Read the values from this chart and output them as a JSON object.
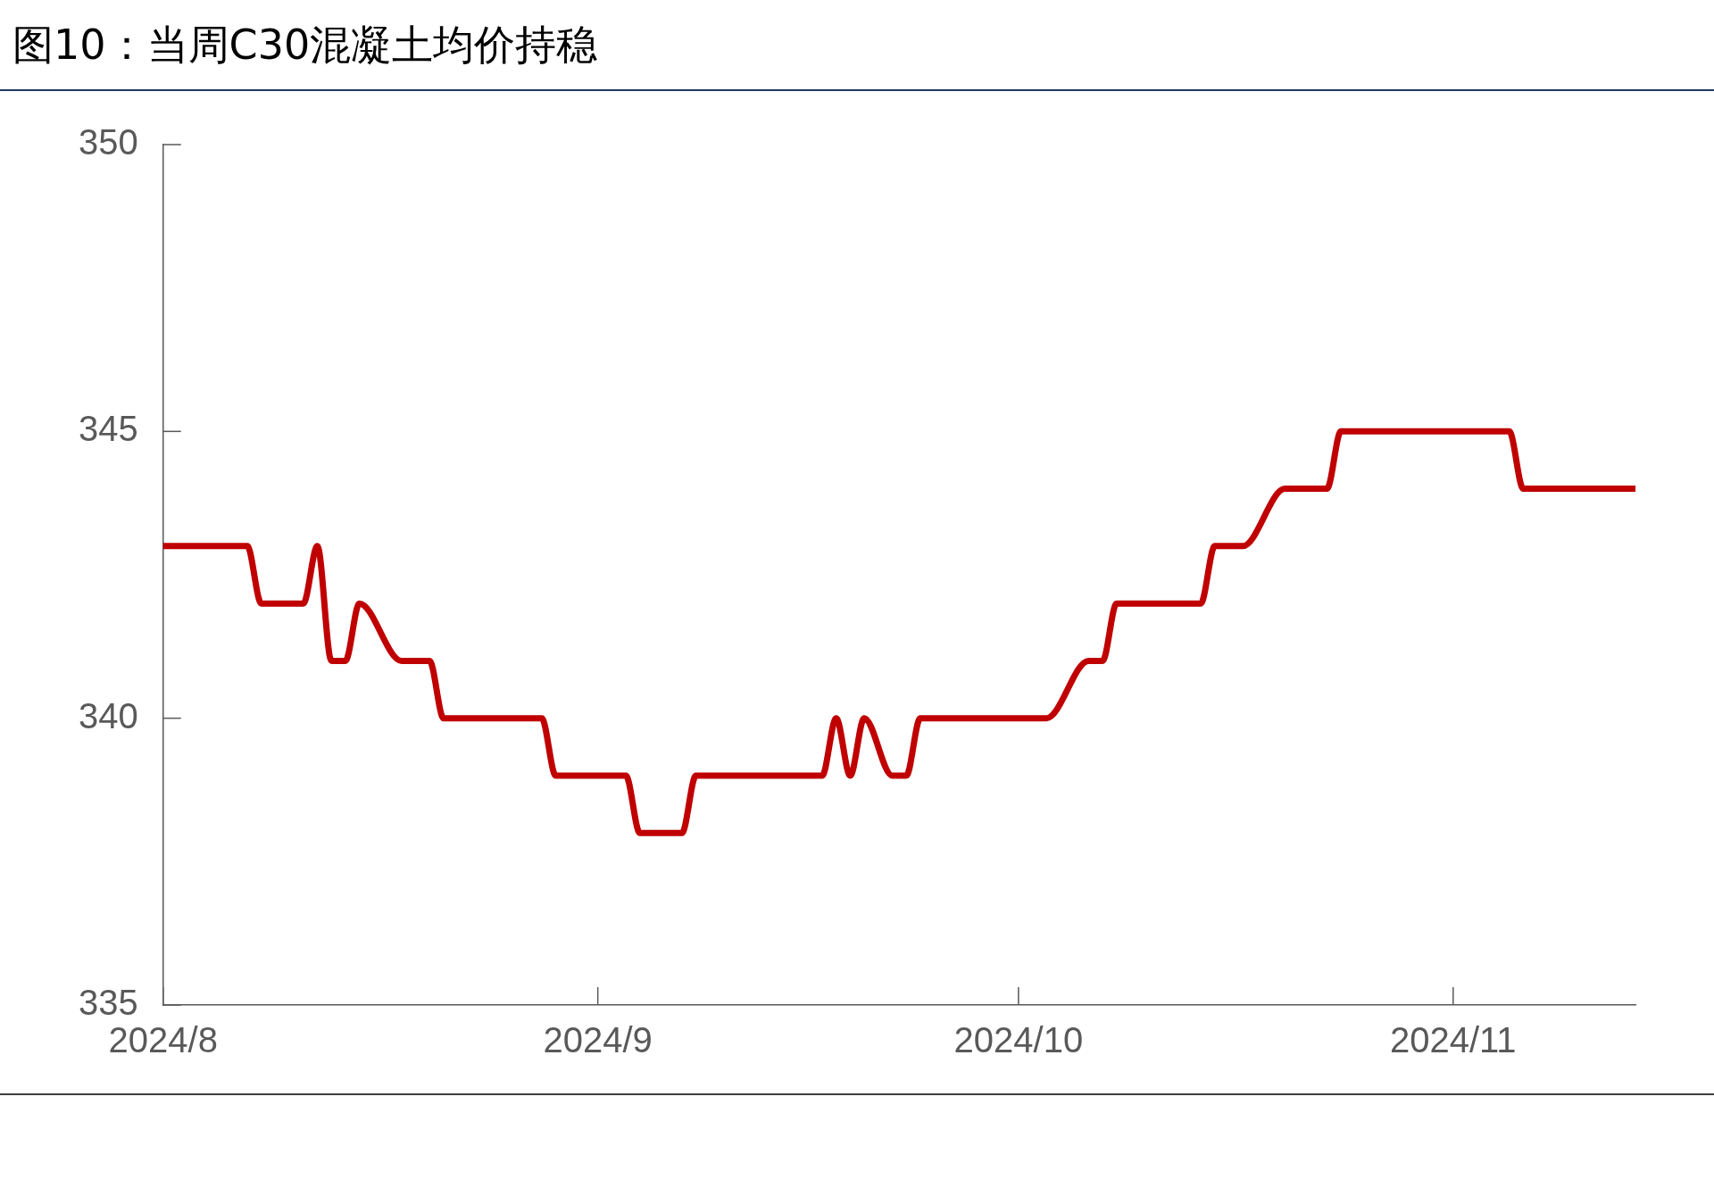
{
  "chart_data": {
    "type": "line",
    "title": "图10：当周C30混凝土均价持稳",
    "x": [
      "2024-08-01",
      "2024-08-07",
      "2024-08-08",
      "2024-08-11",
      "2024-08-12",
      "2024-08-13",
      "2024-08-14",
      "2024-08-15",
      "2024-08-18",
      "2024-08-20",
      "2024-08-21",
      "2024-08-28",
      "2024-08-29",
      "2024-09-03",
      "2024-09-04",
      "2024-09-07",
      "2024-09-08",
      "2024-09-17",
      "2024-09-18",
      "2024-09-19",
      "2024-09-20",
      "2024-09-22",
      "2024-09-23",
      "2024-09-24",
      "2024-10-03",
      "2024-10-06",
      "2024-10-07",
      "2024-10-08",
      "2024-10-14",
      "2024-10-15",
      "2024-10-17",
      "2024-10-20",
      "2024-10-23",
      "2024-10-24",
      "2024-11-05",
      "2024-11-06",
      "2024-11-14"
    ],
    "series": [
      {
        "color": "#c00000",
        "values": [
          343,
          343,
          342,
          342,
          343,
          341,
          341,
          342,
          341,
          341,
          340,
          340,
          339,
          339,
          338,
          338,
          339,
          339,
          340,
          339,
          340,
          339,
          339,
          340,
          340,
          341,
          341,
          342,
          342,
          343,
          343,
          344,
          344,
          345,
          345,
          344,
          344
        ]
      }
    ],
    "xlim": [
      "2024-08-01",
      "2024-11-14"
    ],
    "xticks": [
      {
        "value": "2024-08-01",
        "label": "2024/8"
      },
      {
        "value": "2024-09-01",
        "label": "2024/9"
      },
      {
        "value": "2024-10-01",
        "label": "2024/10"
      },
      {
        "value": "2024-11-01",
        "label": "2024/11"
      }
    ],
    "ylim": [
      335,
      350
    ],
    "yticks": [
      335,
      340,
      345,
      350
    ],
    "marker": "none",
    "line_style": "solid",
    "legend": false,
    "grid": false
  }
}
